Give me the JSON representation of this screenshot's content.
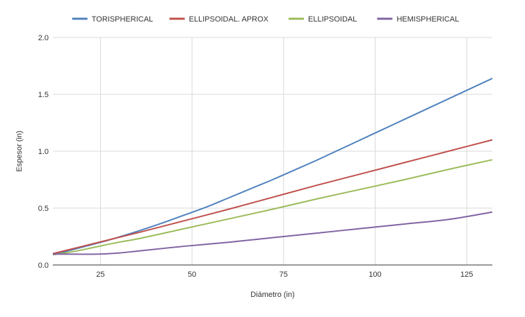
{
  "chart_data": {
    "type": "line",
    "title": "",
    "xlabel": "Diámetro (in)",
    "ylabel": "Espesor (in)",
    "xlim": [
      12,
      132
    ],
    "ylim": [
      0,
      2.0
    ],
    "xticks": [
      25,
      50,
      75,
      100,
      125
    ],
    "xtick_labels": [
      "25",
      "50",
      "75",
      "100",
      "125"
    ],
    "yticks": [
      0,
      0.5,
      1.0,
      1.5,
      2.0
    ],
    "ytick_labels": [
      "0.0",
      "0.5",
      "1.0",
      "1.5",
      "2.0"
    ],
    "grid": true,
    "legend_position": "top-center",
    "series": [
      {
        "name": "TORISPHERICAL",
        "color": "#4f81bd",
        "x": [
          12,
          24,
          30,
          36,
          42,
          48,
          54,
          60,
          66,
          72,
          78,
          84,
          90,
          96,
          102,
          108,
          114,
          120,
          126,
          132
        ],
        "y": [
          0.09,
          0.19,
          0.245,
          0.305,
          0.37,
          0.44,
          0.51,
          0.59,
          0.67,
          0.75,
          0.835,
          0.92,
          1.01,
          1.1,
          1.19,
          1.28,
          1.37,
          1.46,
          1.55,
          1.64
        ]
      },
      {
        "name": "ELLIPSOIDAL. APROX",
        "color": "#c0504d",
        "x": [
          12,
          24,
          36,
          48,
          60,
          72,
          84,
          96,
          108,
          120,
          132
        ],
        "y": [
          0.1,
          0.195,
          0.29,
          0.39,
          0.49,
          0.595,
          0.7,
          0.8,
          0.9,
          1.0,
          1.1
        ]
      },
      {
        "name": "ELLIPSOIDAL",
        "color": "#9bbb59",
        "x": [
          12,
          18,
          24,
          30,
          36,
          48,
          60,
          72,
          84,
          96,
          108,
          120,
          132
        ],
        "y": [
          0.09,
          0.12,
          0.16,
          0.2,
          0.235,
          0.32,
          0.405,
          0.49,
          0.58,
          0.665,
          0.75,
          0.84,
          0.925
        ]
      },
      {
        "name": "HEMISPHERICAL",
        "color": "#8064a2",
        "x": [
          12,
          18,
          24,
          30,
          36,
          48,
          60,
          72,
          84,
          96,
          108,
          120,
          132
        ],
        "y": [
          0.095,
          0.095,
          0.095,
          0.105,
          0.125,
          0.165,
          0.2,
          0.24,
          0.28,
          0.32,
          0.36,
          0.4,
          0.465
        ]
      }
    ]
  }
}
